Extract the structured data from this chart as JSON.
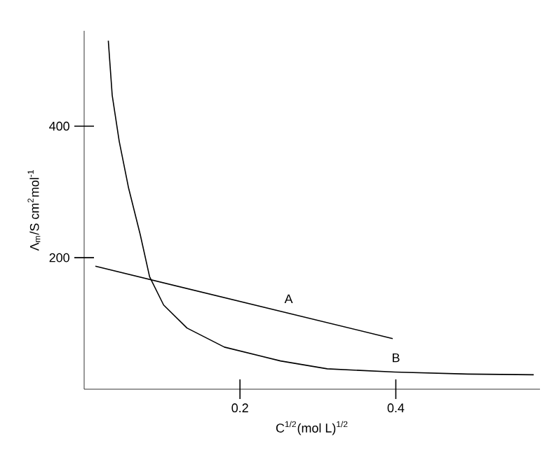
{
  "chart_data": {
    "type": "line",
    "xlabel": "C$^{1/2}$(mol L)$^{1/2}$",
    "ylabel": "Λ$_{m}$/S cm$^{2}$mol$^{-1}$",
    "xlim": [
      0,
      0.585
    ],
    "ylim": [
      0,
      545
    ],
    "xticks": [
      0.2,
      0.4
    ],
    "yticks": [
      200,
      400
    ],
    "grid": false,
    "marker": "none",
    "line_style": "solid",
    "series": [
      {
        "name": "A",
        "color": "#000000",
        "x": [
          0.0144,
          0.396
        ],
        "values": [
          187,
          77
        ]
      },
      {
        "name": "B",
        "color": "#000000",
        "x": [
          0.031,
          0.036,
          0.045,
          0.057,
          0.072,
          0.084,
          0.102,
          0.132,
          0.18,
          0.252,
          0.312,
          0.399,
          0.492,
          0.577
        ],
        "values": [
          530,
          447,
          377,
          306,
          235,
          171,
          128,
          93,
          64,
          43,
          31,
          26,
          23,
          22
        ]
      }
    ]
  }
}
